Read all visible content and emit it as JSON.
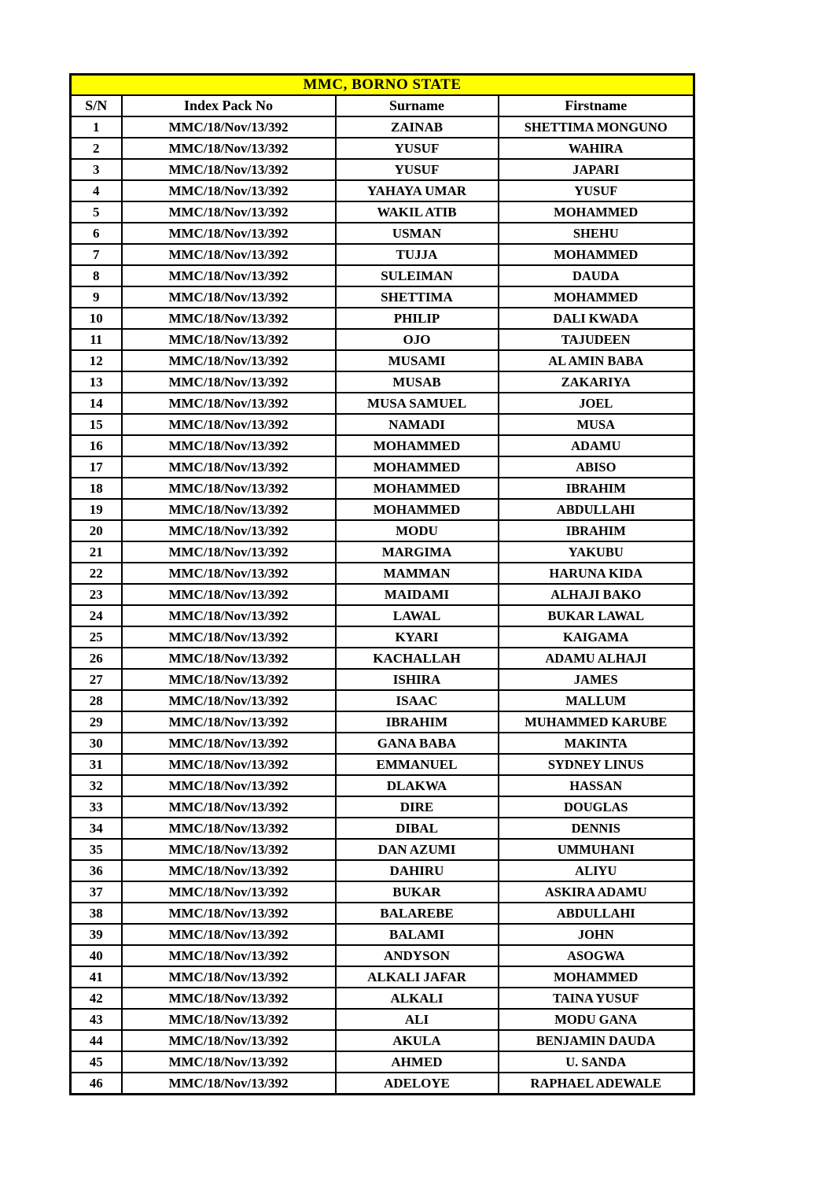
{
  "title": "MMC, BORNO STATE",
  "title_bg_color": "#FFFF00",
  "border_color": "#000000",
  "columns": [
    "S/N",
    "Index Pack No",
    "Surname",
    "Firstname"
  ],
  "rows": [
    {
      "sn": "1",
      "index_pack_no": "MMC/18/Nov/13/392",
      "surname": "ZAINAB",
      "firstname": "SHETTIMA MONGUNO"
    },
    {
      "sn": "2",
      "index_pack_no": "MMC/18/Nov/13/392",
      "surname": "YUSUF",
      "firstname": "WAHIRA"
    },
    {
      "sn": "3",
      "index_pack_no": "MMC/18/Nov/13/392",
      "surname": "YUSUF",
      "firstname": "JAPARI"
    },
    {
      "sn": "4",
      "index_pack_no": "MMC/18/Nov/13/392",
      "surname": "YAHAYA UMAR",
      "firstname": "YUSUF"
    },
    {
      "sn": "5",
      "index_pack_no": "MMC/18/Nov/13/392",
      "surname": "WAKIL ATIB",
      "firstname": "MOHAMMED"
    },
    {
      "sn": "6",
      "index_pack_no": "MMC/18/Nov/13/392",
      "surname": "USMAN",
      "firstname": "SHEHU"
    },
    {
      "sn": "7",
      "index_pack_no": "MMC/18/Nov/13/392",
      "surname": "TUJJA",
      "firstname": "MOHAMMED"
    },
    {
      "sn": "8",
      "index_pack_no": "MMC/18/Nov/13/392",
      "surname": "SULEIMAN",
      "firstname": "DAUDA"
    },
    {
      "sn": "9",
      "index_pack_no": "MMC/18/Nov/13/392",
      "surname": "SHETTIMA",
      "firstname": "MOHAMMED"
    },
    {
      "sn": "10",
      "index_pack_no": "MMC/18/Nov/13/392",
      "surname": "PHILIP",
      "firstname": "DALI KWADA"
    },
    {
      "sn": "11",
      "index_pack_no": "MMC/18/Nov/13/392",
      "surname": "OJO",
      "firstname": "TAJUDEEN"
    },
    {
      "sn": "12",
      "index_pack_no": "MMC/18/Nov/13/392",
      "surname": "MUSAMI",
      "firstname": "AL AMIN BABA"
    },
    {
      "sn": "13",
      "index_pack_no": "MMC/18/Nov/13/392",
      "surname": "MUSAB",
      "firstname": "ZAKARIYA"
    },
    {
      "sn": "14",
      "index_pack_no": "MMC/18/Nov/13/392",
      "surname": "MUSA SAMUEL",
      "firstname": "JOEL"
    },
    {
      "sn": "15",
      "index_pack_no": "MMC/18/Nov/13/392",
      "surname": "NAMADI",
      "firstname": "MUSA"
    },
    {
      "sn": "16",
      "index_pack_no": "MMC/18/Nov/13/392",
      "surname": "MOHAMMED",
      "firstname": "ADAMU"
    },
    {
      "sn": "17",
      "index_pack_no": "MMC/18/Nov/13/392",
      "surname": "MOHAMMED",
      "firstname": "ABISO"
    },
    {
      "sn": "18",
      "index_pack_no": "MMC/18/Nov/13/392",
      "surname": "MOHAMMED",
      "firstname": "IBRAHIM"
    },
    {
      "sn": "19",
      "index_pack_no": "MMC/18/Nov/13/392",
      "surname": "MOHAMMED",
      "firstname": "ABDULLAHI"
    },
    {
      "sn": "20",
      "index_pack_no": "MMC/18/Nov/13/392",
      "surname": "MODU",
      "firstname": "IBRAHIM"
    },
    {
      "sn": "21",
      "index_pack_no": "MMC/18/Nov/13/392",
      "surname": "MARGIMA",
      "firstname": "YAKUBU"
    },
    {
      "sn": "22",
      "index_pack_no": "MMC/18/Nov/13/392",
      "surname": "MAMMAN",
      "firstname": "HARUNA KIDA"
    },
    {
      "sn": "23",
      "index_pack_no": "MMC/18/Nov/13/392",
      "surname": "MAIDAMI",
      "firstname": "ALHAJI BAKO"
    },
    {
      "sn": "24",
      "index_pack_no": "MMC/18/Nov/13/392",
      "surname": "LAWAL",
      "firstname": "BUKAR LAWAL"
    },
    {
      "sn": "25",
      "index_pack_no": "MMC/18/Nov/13/392",
      "surname": "KYARI",
      "firstname": "KAIGAMA"
    },
    {
      "sn": "26",
      "index_pack_no": "MMC/18/Nov/13/392",
      "surname": "KACHALLAH",
      "firstname": "ADAMU ALHAJI"
    },
    {
      "sn": "27",
      "index_pack_no": "MMC/18/Nov/13/392",
      "surname": "ISHIRA",
      "firstname": "JAMES"
    },
    {
      "sn": "28",
      "index_pack_no": "MMC/18/Nov/13/392",
      "surname": "ISAAC",
      "firstname": "MALLUM"
    },
    {
      "sn": "29",
      "index_pack_no": "MMC/18/Nov/13/392",
      "surname": "IBRAHIM",
      "firstname": "MUHAMMED KARUBE"
    },
    {
      "sn": "30",
      "index_pack_no": "MMC/18/Nov/13/392",
      "surname": "GANA BABA",
      "firstname": "MAKINTA"
    },
    {
      "sn": "31",
      "index_pack_no": "MMC/18/Nov/13/392",
      "surname": "EMMANUEL",
      "firstname": "SYDNEY LINUS"
    },
    {
      "sn": "32",
      "index_pack_no": "MMC/18/Nov/13/392",
      "surname": "DLAKWA",
      "firstname": "HASSAN"
    },
    {
      "sn": "33",
      "index_pack_no": "MMC/18/Nov/13/392",
      "surname": "DIRE",
      "firstname": "DOUGLAS"
    },
    {
      "sn": "34",
      "index_pack_no": "MMC/18/Nov/13/392",
      "surname": "DIBAL",
      "firstname": "DENNIS"
    },
    {
      "sn": "35",
      "index_pack_no": "MMC/18/Nov/13/392",
      "surname": "DAN AZUMI",
      "firstname": "UMMUHANI"
    },
    {
      "sn": "36",
      "index_pack_no": "MMC/18/Nov/13/392",
      "surname": "DAHIRU",
      "firstname": "ALIYU"
    },
    {
      "sn": "37",
      "index_pack_no": "MMC/18/Nov/13/392",
      "surname": "BUKAR",
      "firstname": "ASKIRA ADAMU"
    },
    {
      "sn": "38",
      "index_pack_no": "MMC/18/Nov/13/392",
      "surname": "BALAREBE",
      "firstname": "ABDULLAHI"
    },
    {
      "sn": "39",
      "index_pack_no": "MMC/18/Nov/13/392",
      "surname": "BALAMI",
      "firstname": "JOHN"
    },
    {
      "sn": "40",
      "index_pack_no": "MMC/18/Nov/13/392",
      "surname": "ANDYSON",
      "firstname": "ASOGWA"
    },
    {
      "sn": "41",
      "index_pack_no": "MMC/18/Nov/13/392",
      "surname": "ALKALI JAFAR",
      "firstname": "MOHAMMED"
    },
    {
      "sn": "42",
      "index_pack_no": "MMC/18/Nov/13/392",
      "surname": "ALKALI",
      "firstname": "TAINA YUSUF"
    },
    {
      "sn": "43",
      "index_pack_no": "MMC/18/Nov/13/392",
      "surname": "ALI",
      "firstname": "MODU GANA"
    },
    {
      "sn": "44",
      "index_pack_no": "MMC/18/Nov/13/392",
      "surname": "AKULA",
      "firstname": "BENJAMIN DAUDA"
    },
    {
      "sn": "45",
      "index_pack_no": "MMC/18/Nov/13/392",
      "surname": "AHMED",
      "firstname": "U. SANDA"
    },
    {
      "sn": "46",
      "index_pack_no": "MMC/18/Nov/13/392",
      "surname": "ADELOYE",
      "firstname": "RAPHAEL ADEWALE"
    }
  ]
}
